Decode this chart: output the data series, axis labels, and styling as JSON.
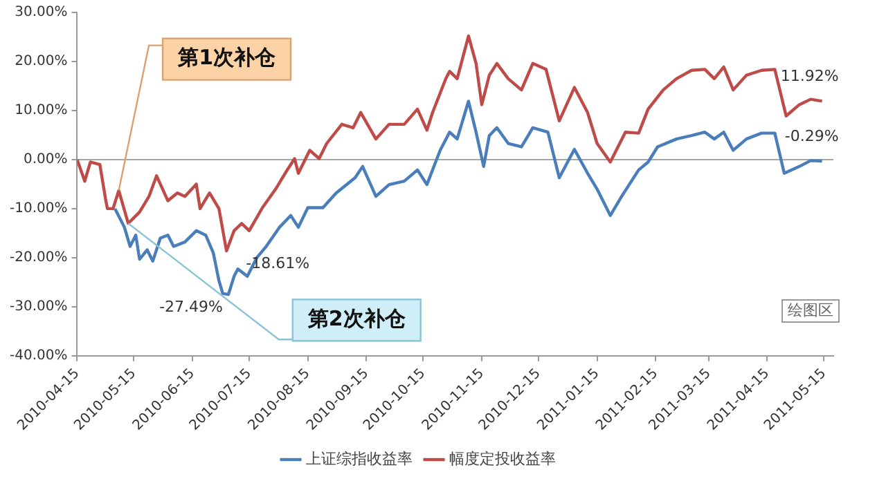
{
  "chart_data": {
    "type": "line",
    "xlim": [
      "2010-04-15",
      "2011-05-20"
    ],
    "xticks": [
      "2010-04-15",
      "2010-05-15",
      "2010-06-15",
      "2010-07-15",
      "2010-08-15",
      "2010-09-15",
      "2010-10-15",
      "2010-11-15",
      "2010-12-15",
      "2011-01-15",
      "2011-02-15",
      "2011-03-15",
      "2011-04-15",
      "2011-05-15"
    ],
    "ylim": [
      -40,
      30
    ],
    "yticks": [
      {
        "value": -40,
        "label": "-40.00%"
      },
      {
        "value": -30,
        "label": "-30.00%"
      },
      {
        "value": -20,
        "label": "-20.00%"
      },
      {
        "value": -10,
        "label": "-10.00%"
      },
      {
        "value": 0,
        "label": "0.00%"
      },
      {
        "value": 10,
        "label": "10.00%"
      },
      {
        "value": 20,
        "label": "20.00%"
      },
      {
        "value": 30,
        "label": "30.00%"
      }
    ],
    "grid": false,
    "legend": "bottom",
    "ref_lines": [
      {
        "axis": "y",
        "value": 0,
        "color": "#a6a6a6"
      }
    ],
    "series": [
      {
        "name": "上证综指收益率",
        "color": "#4a7ebb",
        "x": [
          "2010-05-05",
          "2010-05-10",
          "2010-05-13",
          "2010-05-16",
          "2010-05-18",
          "2010-05-22",
          "2010-05-25",
          "2010-05-29",
          "2010-06-02",
          "2010-06-05",
          "2010-06-11",
          "2010-06-17",
          "2010-06-22",
          "2010-06-26",
          "2010-06-29",
          "2010-07-01",
          "2010-07-04",
          "2010-07-07",
          "2010-07-09",
          "2010-07-14",
          "2010-07-19",
          "2010-07-24",
          "2010-07-31",
          "2010-08-06",
          "2010-08-10",
          "2010-08-15",
          "2010-08-23",
          "2010-08-30",
          "2010-09-09",
          "2010-09-13",
          "2010-09-20",
          "2010-09-27",
          "2010-10-05",
          "2010-10-12",
          "2010-10-17",
          "2010-10-24",
          "2010-10-29",
          "2010-11-02",
          "2010-11-08",
          "2010-11-12",
          "2010-11-16",
          "2010-11-19",
          "2010-11-23",
          "2010-11-29",
          "2010-12-06",
          "2010-12-12",
          "2010-12-20",
          "2010-12-26",
          "2011-01-03",
          "2011-01-10",
          "2011-01-15",
          "2011-01-22",
          "2011-01-28",
          "2011-02-06",
          "2011-02-11",
          "2011-02-16",
          "2011-02-26",
          "2011-03-06",
          "2011-03-13",
          "2011-03-18",
          "2011-03-23",
          "2011-03-28",
          "2011-04-04",
          "2011-04-12",
          "2011-04-19",
          "2011-04-24",
          "2011-05-02",
          "2011-05-08",
          "2011-05-14"
        ],
        "values": [
          -10,
          -13.8,
          -17.7,
          -15.4,
          -20.3,
          -18.4,
          -20.7,
          -16,
          -15.4,
          -17.7,
          -16.8,
          -14.5,
          -15.4,
          -19,
          -24.7,
          -27.3,
          -27.49,
          -23.8,
          -22.3,
          -23.8,
          -20,
          -17.7,
          -13.8,
          -11.4,
          -13.8,
          -9.8,
          -9.8,
          -6.8,
          -3.7,
          -1.4,
          -7.5,
          -5.1,
          -4.4,
          -2.1,
          -5.1,
          1.9,
          5.6,
          4.2,
          11.9,
          5.6,
          -1.4,
          4.9,
          6.5,
          3.3,
          2.6,
          6.5,
          5.6,
          -3.7,
          2.1,
          -2.8,
          -6,
          -11.4,
          -7.5,
          -2.1,
          -0.5,
          2.6,
          4.2,
          4.9,
          5.6,
          4.2,
          5.6,
          1.9,
          4.2,
          5.4,
          5.4,
          -2.8,
          -1.4,
          -0.2,
          -0.29
        ],
        "value_labels": [
          null,
          null,
          null,
          null,
          null,
          null,
          null,
          null,
          null,
          null,
          null,
          null,
          null,
          null,
          null,
          null,
          "-27.49%",
          null,
          null,
          null,
          null,
          null,
          null,
          null,
          null,
          null,
          null,
          null,
          null,
          null,
          null,
          null,
          null,
          null,
          null,
          null,
          null,
          null,
          null,
          null,
          null,
          null,
          null,
          null,
          null,
          null,
          null,
          null,
          null,
          null,
          null,
          null,
          null,
          null,
          null,
          null,
          null,
          null,
          null,
          null,
          null,
          null,
          null,
          null,
          null,
          null,
          null,
          null,
          "-0.29%"
        ]
      },
      {
        "name": "幅度定投收益率",
        "color": "#be4b48",
        "x": [
          "2010-04-15",
          "2010-04-19",
          "2010-04-22",
          "2010-04-27",
          "2010-04-30",
          "2010-05-01",
          "2010-05-04",
          "2010-05-07",
          "2010-05-12",
          "2010-05-18",
          "2010-05-23",
          "2010-05-27",
          "2010-06-02",
          "2010-06-07",
          "2010-06-11",
          "2010-06-17",
          "2010-06-19",
          "2010-06-24",
          "2010-06-29",
          "2010-07-03",
          "2010-07-07",
          "2010-07-11",
          "2010-07-15",
          "2010-07-22",
          "2010-07-29",
          "2010-08-03",
          "2010-08-08",
          "2010-08-10",
          "2010-08-16",
          "2010-08-21",
          "2010-08-25",
          "2010-09-02",
          "2010-09-08",
          "2010-09-12",
          "2010-09-20",
          "2010-09-27",
          "2010-10-05",
          "2010-10-12",
          "2010-10-17",
          "2010-10-20",
          "2010-10-27",
          "2010-10-29",
          "2010-11-02",
          "2010-11-08",
          "2010-11-12",
          "2010-11-15",
          "2010-11-19",
          "2010-11-23",
          "2010-11-29",
          "2010-12-06",
          "2010-12-12",
          "2010-12-19",
          "2010-12-26",
          "2011-01-03",
          "2011-01-10",
          "2011-01-15",
          "2011-01-22",
          "2011-01-30",
          "2011-02-06",
          "2011-02-11",
          "2011-02-19",
          "2011-02-26",
          "2011-03-06",
          "2011-03-13",
          "2011-03-18",
          "2011-03-23",
          "2011-03-28",
          "2011-04-04",
          "2011-04-12",
          "2011-04-19",
          "2011-04-25",
          "2011-05-02",
          "2011-05-08",
          "2011-05-14"
        ],
        "values": [
          0,
          -4.4,
          -0.5,
          -1,
          -8,
          -10,
          -10,
          -6.3,
          -13,
          -10.7,
          -7.5,
          -3.3,
          -8.4,
          -6.8,
          -7.5,
          -5,
          -10,
          -6.8,
          -10,
          -18.61,
          -14.5,
          -13,
          -14.5,
          -9.8,
          -6,
          -2.8,
          0.2,
          -2.8,
          1.9,
          0.2,
          3.3,
          7.2,
          6.5,
          9.6,
          4.2,
          7.2,
          7.2,
          10.3,
          6,
          9.6,
          16.5,
          18,
          16.5,
          25.2,
          19.6,
          11.2,
          17.2,
          19.6,
          16.5,
          14.2,
          19.6,
          18.4,
          7.9,
          14.7,
          9.6,
          3.3,
          -0.5,
          5.6,
          5.4,
          10.3,
          14.2,
          16.5,
          18.2,
          18.4,
          16.5,
          18.9,
          14.2,
          17.2,
          18.2,
          18.4,
          8.9,
          11.2,
          12.3,
          11.92
        ],
        "value_labels": [
          null,
          null,
          null,
          null,
          null,
          null,
          null,
          null,
          null,
          null,
          null,
          null,
          null,
          null,
          null,
          null,
          null,
          null,
          null,
          "-18.61%",
          null,
          null,
          null,
          null,
          null,
          null,
          null,
          null,
          null,
          null,
          null,
          null,
          null,
          null,
          null,
          null,
          null,
          null,
          null,
          null,
          null,
          null,
          null,
          null,
          null,
          null,
          null,
          null,
          null,
          null,
          null,
          null,
          null,
          null,
          null,
          null,
          null,
          null,
          null,
          null,
          null,
          null,
          null,
          null,
          null,
          null,
          null,
          null,
          null,
          null,
          null,
          null,
          null,
          "11.92%"
        ]
      }
    ],
    "annotations": [
      {
        "text": "第1次补仓",
        "x": "2010-05-07",
        "y": -6.3
      },
      {
        "text": "第2次补仓",
        "x": "2010-05-12",
        "y": -13
      },
      "绘图区"
    ]
  }
}
